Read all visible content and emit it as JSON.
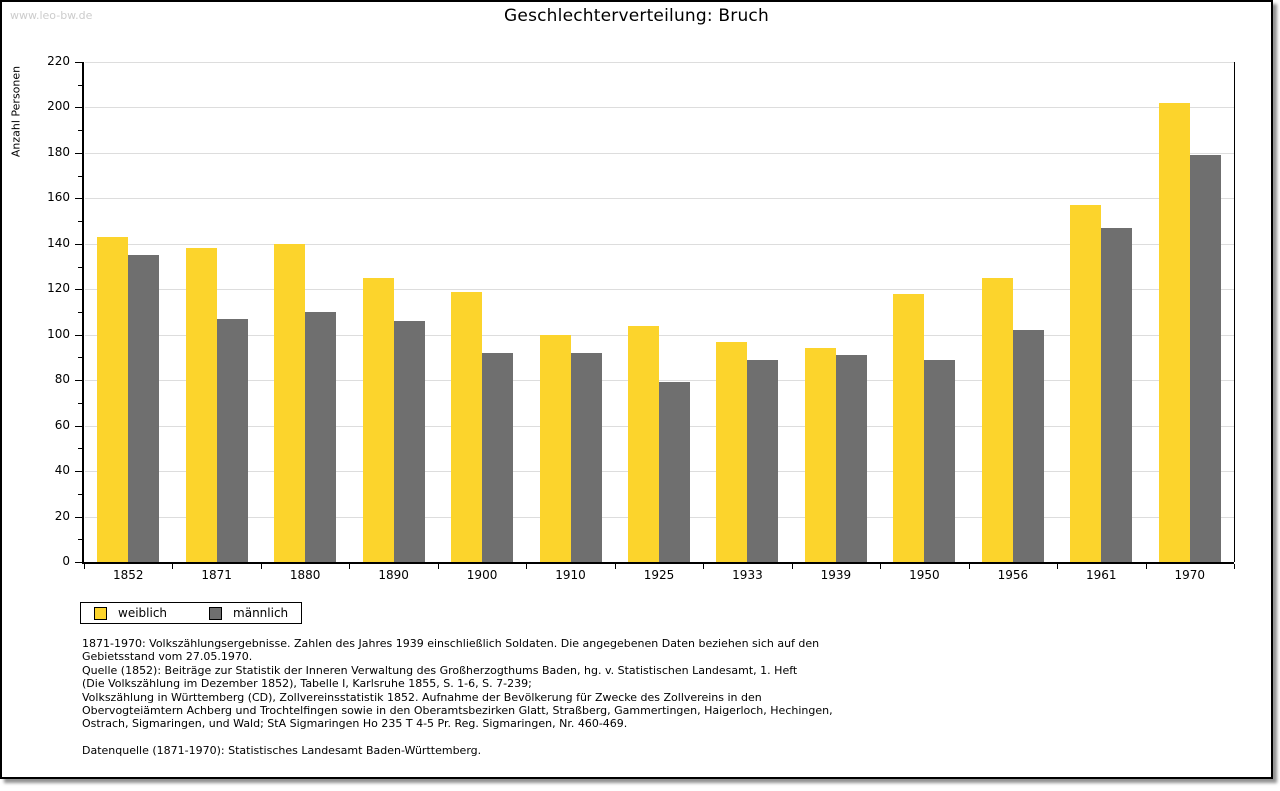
{
  "page": {
    "watermark": "www.leo-bw.de",
    "title": "Geschlechterverteilung: Bruch"
  },
  "chart_data": {
    "type": "bar",
    "title": "Geschlechterverteilung: Bruch",
    "xlabel": "",
    "ylabel": "Anzahl Personen",
    "ylim": [
      0,
      220
    ],
    "ytick_step": 20,
    "ytick_minor_step": 10,
    "grid": true,
    "legend_position": "bottom-left",
    "categories": [
      "1852",
      "1871",
      "1880",
      "1890",
      "1900",
      "1910",
      "1925",
      "1933",
      "1939",
      "1950",
      "1956",
      "1961",
      "1970"
    ],
    "series": [
      {
        "name": "weiblich",
        "color": "#FCD42C",
        "values": [
          143,
          138,
          140,
          125,
          119,
          100,
          104,
          97,
          94,
          118,
          125,
          157,
          202
        ]
      },
      {
        "name": "männlich",
        "color": "#6F6F6F",
        "values": [
          135,
          107,
          110,
          106,
          92,
          92,
          79,
          89,
          91,
          89,
          102,
          147,
          179
        ]
      }
    ]
  },
  "footer": {
    "lines": [
      "1871-1970: Volkszählungsergebnisse. Zahlen des Jahres 1939 einschließlich Soldaten. Die angegebenen Daten beziehen sich auf den",
      "Gebietsstand vom 27.05.1970.",
      "Quelle (1852): Beiträge zur Statistik der Inneren Verwaltung des Großherzogthums Baden, hg. v. Statistischen Landesamt, 1. Heft",
      "(Die Volkszählung im Dezember 1852), Tabelle I, Karlsruhe 1855, S. 1-6, S. 7-239;",
      "Volkszählung in Württemberg (CD), Zollvereinsstatistik 1852. Aufnahme der Bevölkerung für Zwecke des Zollvereins in den",
      "Obervogteiämtern Achberg und Trochtelfingen sowie in den Oberamtsbezirken Glatt, Straßberg, Gammertingen, Haigerloch, Hechingen,",
      "Ostrach, Sigmaringen, und Wald; StA Sigmaringen Ho 235 T 4-5 Pr. Reg. Sigmaringen, Nr. 460-469."
    ],
    "datenquelle": "Datenquelle (1871-1970): Statistisches Landesamt Baden-Württemberg."
  },
  "colors": {
    "bar_weiblich": "#FCD42C",
    "bar_maennlich": "#6F6F6F",
    "gridline": "#dddddd",
    "watermark": "#cccccc",
    "axis": "#000000"
  }
}
